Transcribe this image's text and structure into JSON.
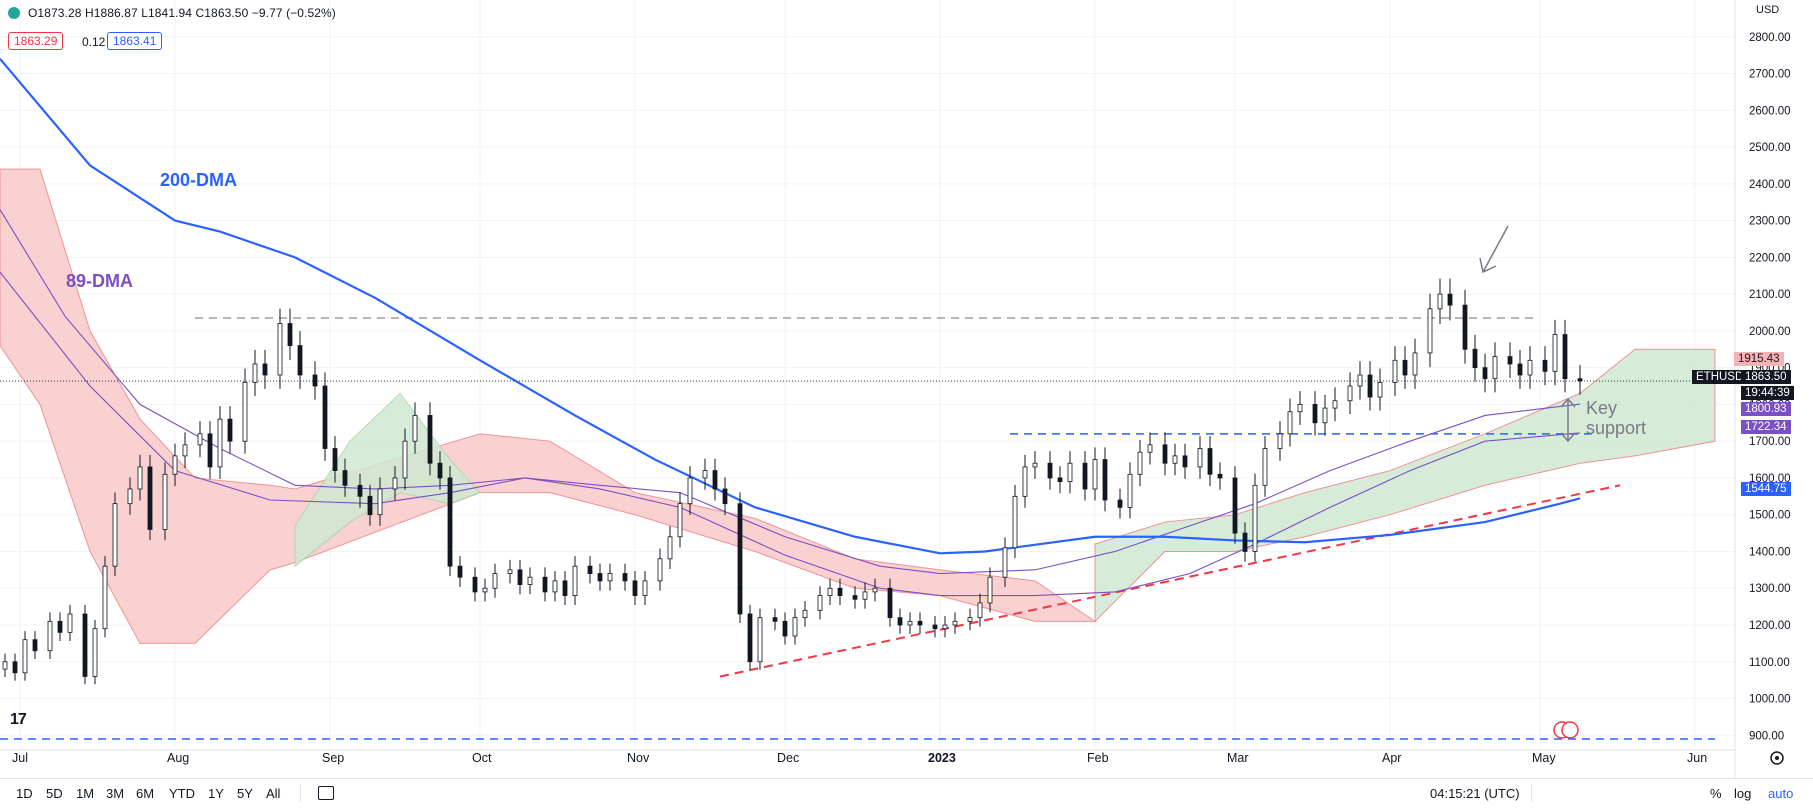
{
  "header": {
    "ohlc": "O1873.28 H1886.87 L1841.94 C1863.50 −9.77 (−0.52%)",
    "bid": "1863.29",
    "spread": "0.12",
    "ask": "1863.41"
  },
  "currency": "USD",
  "tv_logo": "17",
  "annotations": {
    "dma200": "200-DMA",
    "dma89": "89-DMA",
    "key_support_1": "Key",
    "key_support_2": "support"
  },
  "bottom_bar": {
    "timeframes": [
      "1D",
      "5D",
      "1M",
      "3M",
      "6M",
      "YTD",
      "1Y",
      "5Y",
      "All"
    ],
    "clock": "04:15:21 (UTC)",
    "pct": "%",
    "log": "log",
    "auto": "auto"
  },
  "right_labels": {
    "l1915": "1915.43",
    "ethusd": "ETHUSD",
    "last": "1863.50",
    "countdown": "19:44:39",
    "l1800": "1800.93",
    "l1722": "1722.34",
    "l1544": "1544.75"
  },
  "colors": {
    "up": "#131722",
    "down": "#131722",
    "dma200": "#2962ff",
    "dma89": "#7b4fc6",
    "cloud_bear": "#f8c9c9",
    "cloud_bull": "#cfe9d3",
    "trend": "#f23645",
    "resistance": "#9e9e9e",
    "support_line": "#2962ff",
    "arrow": "#787b86"
  },
  "chart_data": {
    "type": "line",
    "symbol": "ETHUSD",
    "xlim": [
      "2022-06-27",
      "2023-06-09"
    ],
    "ylim": [
      860,
      2900
    ],
    "x_ticks": [
      "Jul",
      "Aug",
      "Sep",
      "Oct",
      "Nov",
      "Dec",
      "2023",
      "Feb",
      "Mar",
      "Apr",
      "May",
      "Jun"
    ],
    "x_tick_dates": [
      "2022-07-01",
      "2022-08-01",
      "2022-09-01",
      "2022-10-01",
      "2022-11-01",
      "2022-12-01",
      "2023-01-01",
      "2023-02-01",
      "2023-03-01",
      "2023-04-01",
      "2023-05-01",
      "2023-06-01"
    ],
    "y_ticks": [
      900,
      1000,
      1100,
      1200,
      1300,
      1400,
      1500,
      1600,
      1700,
      1800,
      1900,
      2000,
      2100,
      2200,
      2300,
      2400,
      2500,
      2600,
      2700,
      2800
    ],
    "y_tick_labels": [
      "900.00",
      "1000.00",
      "1100.00",
      "1200.00",
      "1300.00",
      "1400.00",
      "1500.00",
      "1600.00",
      "1700.00",
      "1800.00",
      "1900.00",
      "2000.00",
      "2100.00",
      "2200.00",
      "2300.00",
      "2400.00",
      "2500.00",
      "2600.00",
      "2700.00",
      "2800.00"
    ],
    "closes": [
      1100,
      1070,
      1160,
      1130,
      1210,
      1180,
      1230,
      1060,
      1190,
      1360,
      1530,
      1570,
      1630,
      1460,
      1610,
      1660,
      1690,
      1720,
      1630,
      1760,
      1700,
      1860,
      1910,
      1880,
      2020,
      1960,
      1880,
      1850,
      1680,
      1620,
      1580,
      1550,
      1500,
      1570,
      1600,
      1700,
      1770,
      1640,
      1600,
      1360,
      1330,
      1290,
      1300,
      1340,
      1350,
      1310,
      1330,
      1290,
      1320,
      1280,
      1360,
      1340,
      1320,
      1340,
      1320,
      1280,
      1320,
      1380,
      1440,
      1530,
      1600,
      1620,
      1570,
      1530,
      1230,
      1100,
      1220,
      1210,
      1170,
      1220,
      1240,
      1280,
      1300,
      1280,
      1270,
      1290,
      1300,
      1220,
      1200,
      1210,
      1200,
      1190,
      1200,
      1210,
      1220,
      1260,
      1330,
      1410,
      1550,
      1630,
      1640,
      1600,
      1590,
      1640,
      1570,
      1650,
      1540,
      1520,
      1610,
      1670,
      1690,
      1640,
      1660,
      1630,
      1680,
      1610,
      1600,
      1450,
      1400,
      1580,
      1680,
      1720,
      1780,
      1800,
      1750,
      1790,
      1810,
      1850,
      1880,
      1820,
      1860,
      1920,
      1880,
      1940,
      2060,
      2100,
      2070,
      1950,
      1900,
      1870,
      1930,
      1910,
      1880,
      1920,
      1890,
      1990,
      1870,
      1863.5
    ],
    "dma200": [
      [
        "2022-06-27",
        2740
      ],
      [
        "2022-07-15",
        2450
      ],
      [
        "2022-08-01",
        2300
      ],
      [
        "2022-08-10",
        2270
      ],
      [
        "2022-08-25",
        2200
      ],
      [
        "2022-09-10",
        2090
      ],
      [
        "2022-10-01",
        1920
      ],
      [
        "2022-10-20",
        1770
      ],
      [
        "2022-11-05",
        1650
      ],
      [
        "2022-11-25",
        1520
      ],
      [
        "2022-12-15",
        1440
      ],
      [
        "2023-01-01",
        1395
      ],
      [
        "2023-01-10",
        1400
      ],
      [
        "2023-02-01",
        1440
      ],
      [
        "2023-02-15",
        1440
      ],
      [
        "2023-03-01",
        1430
      ],
      [
        "2023-03-15",
        1425
      ],
      [
        "2023-04-01",
        1445
      ],
      [
        "2023-04-20",
        1480
      ],
      [
        "2023-05-05",
        1530
      ],
      [
        "2023-05-09",
        1544.75
      ]
    ],
    "dma89": [
      [
        "2022-06-27",
        2330
      ],
      [
        "2022-07-10",
        2040
      ],
      [
        "2022-07-25",
        1800
      ],
      [
        "2022-08-10",
        1680
      ],
      [
        "2022-08-25",
        1580
      ],
      [
        "2022-09-10",
        1570
      ],
      [
        "2022-09-25",
        1580
      ],
      [
        "2022-10-10",
        1600
      ],
      [
        "2022-10-25",
        1570
      ],
      [
        "2022-11-10",
        1520
      ],
      [
        "2022-12-01",
        1390
      ],
      [
        "2022-12-20",
        1300
      ],
      [
        "2023-01-01",
        1280
      ],
      [
        "2023-01-20",
        1280
      ],
      [
        "2023-02-05",
        1290
      ],
      [
        "2023-02-20",
        1340
      ],
      [
        "2023-03-05",
        1420
      ],
      [
        "2023-03-20",
        1520
      ],
      [
        "2023-04-05",
        1620
      ],
      [
        "2023-04-20",
        1700
      ],
      [
        "2023-05-09",
        1722.34
      ]
    ],
    "ma_upper": [
      [
        "2022-06-27",
        2160
      ],
      [
        "2022-07-15",
        1850
      ],
      [
        "2022-08-01",
        1620
      ],
      [
        "2022-08-20",
        1540
      ],
      [
        "2022-09-10",
        1530
      ],
      [
        "2022-09-25",
        1560
      ],
      [
        "2022-10-10",
        1600
      ],
      [
        "2022-10-25",
        1580
      ],
      [
        "2022-11-10",
        1560
      ],
      [
        "2022-12-01",
        1440
      ],
      [
        "2022-12-20",
        1360
      ],
      [
        "2023-01-01",
        1340
      ],
      [
        "2023-01-20",
        1350
      ],
      [
        "2023-02-05",
        1400
      ],
      [
        "2023-02-20",
        1470
      ],
      [
        "2023-03-05",
        1530
      ],
      [
        "2023-03-20",
        1620
      ],
      [
        "2023-04-05",
        1700
      ],
      [
        "2023-04-20",
        1770
      ],
      [
        "2023-05-09",
        1800.93
      ]
    ],
    "cloud_bear": [
      [
        "2022-06-27",
        2440,
        1960
      ],
      [
        "2022-07-05",
        2440,
        1800
      ],
      [
        "2022-07-15",
        2000,
        1400
      ],
      [
        "2022-07-25",
        1760,
        1150
      ],
      [
        "2022-08-05",
        1600,
        1150
      ],
      [
        "2022-08-20",
        1580,
        1350
      ],
      [
        "2022-08-25",
        1570,
        1370
      ],
      [
        "2022-10-01",
        1720,
        1560
      ],
      [
        "2022-10-15",
        1700,
        1560
      ],
      [
        "2022-11-01",
        1560,
        1500
      ],
      [
        "2022-11-25",
        1490,
        1400
      ],
      [
        "2022-12-15",
        1380,
        1300
      ],
      [
        "2023-01-01",
        1350,
        1280
      ],
      [
        "2023-01-20",
        1320,
        1210
      ],
      [
        "2023-02-01",
        1210,
        1210
      ]
    ],
    "cloud_bull": [
      [
        "2022-08-25",
        1470,
        1360
      ],
      [
        "2022-09-05",
        1700,
        1480
      ],
      [
        "2022-09-15",
        1830,
        1560
      ],
      [
        "2022-09-25",
        1650,
        1530
      ],
      [
        "2022-10-01",
        1560,
        1560
      ]
    ],
    "cloud_bull2": [
      [
        "2023-02-01",
        1420,
        1210
      ],
      [
        "2023-02-15",
        1480,
        1400
      ],
      [
        "2023-03-01",
        1500,
        1400
      ],
      [
        "2023-03-15",
        1560,
        1440
      ],
      [
        "2023-04-01",
        1620,
        1500
      ],
      [
        "2023-04-20",
        1720,
        1580
      ],
      [
        "2023-05-09",
        1830,
        1640
      ],
      [
        "2023-05-20",
        1950,
        1660
      ],
      [
        "2023-06-05",
        1950,
        1700
      ]
    ],
    "resistance": 2035,
    "support_blue": 1720,
    "bottom_dash": 890,
    "trend": [
      [
        "2022-11-18",
        1060
      ],
      [
        "2023-05-17",
        1580
      ]
    ],
    "last_price": 1863.5
  }
}
